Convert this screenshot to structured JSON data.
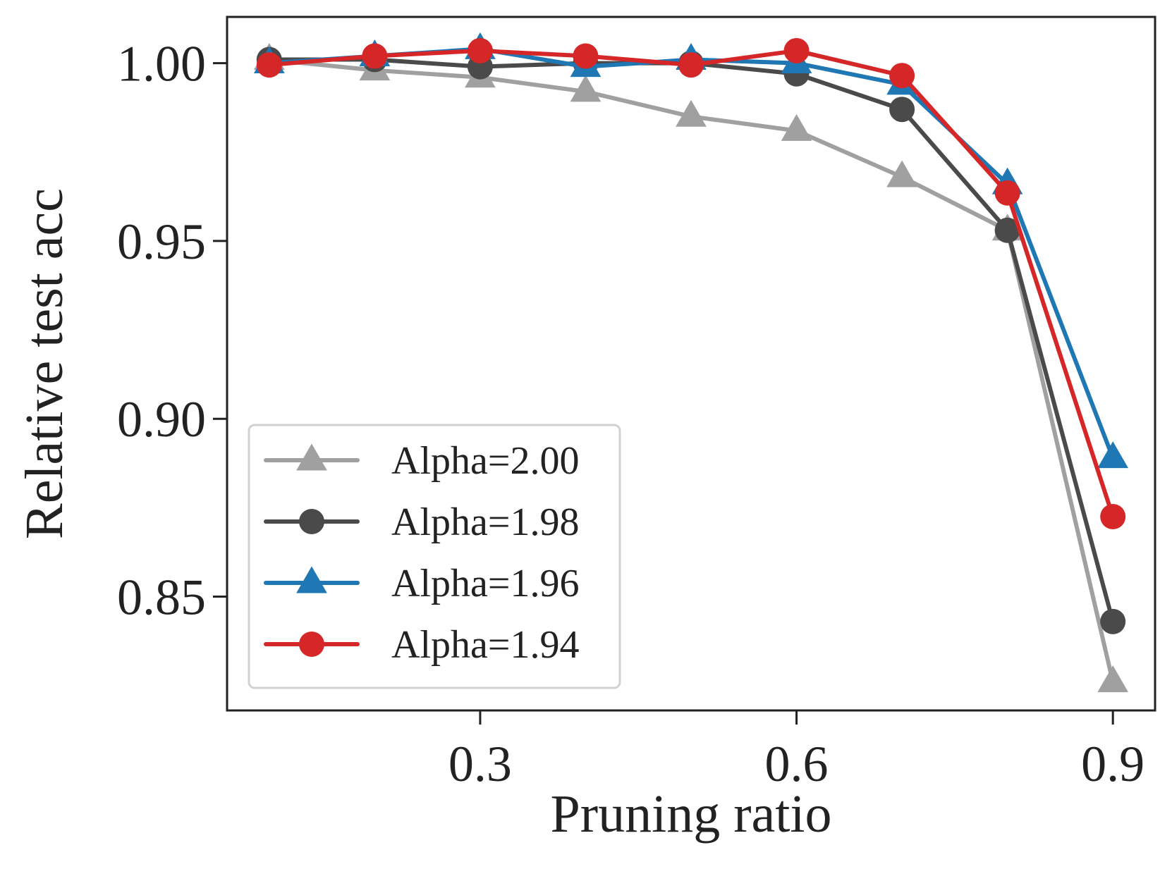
{
  "chart_data": {
    "type": "line",
    "title": "",
    "xlabel": "Pruning ratio",
    "ylabel": "Relative test acc",
    "x": [
      0.1,
      0.2,
      0.3,
      0.4,
      0.5,
      0.6,
      0.7,
      0.8,
      0.9
    ],
    "xlim": [
      0.06,
      0.94
    ],
    "ylim": [
      0.818,
      1.013
    ],
    "xticks": [
      0.3,
      0.6,
      0.9
    ],
    "xtick_labels": [
      "0.3",
      "0.6",
      "0.9"
    ],
    "yticks": [
      0.85,
      0.9,
      0.95,
      1.0
    ],
    "ytick_labels": [
      "0.85",
      "0.90",
      "0.95",
      "1.00"
    ],
    "grid": false,
    "legend_position": "lower-left",
    "series": [
      {
        "name": "Alpha=2.00",
        "color": "#a0a0a0",
        "marker": "triangle",
        "values": [
          1.001,
          0.998,
          0.996,
          0.992,
          0.985,
          0.981,
          0.968,
          0.953,
          0.826
        ]
      },
      {
        "name": "Alpha=1.98",
        "color": "#4a4a4a",
        "marker": "circle",
        "values": [
          1.001,
          1.001,
          0.999,
          1.0,
          1.0,
          0.997,
          0.987,
          0.953,
          0.843
        ]
      },
      {
        "name": "Alpha=1.96",
        "color": "#1f77b4",
        "marker": "triangle",
        "values": [
          1.0,
          1.002,
          1.004,
          0.999,
          1.001,
          1.0,
          0.994,
          0.966,
          0.889
        ]
      },
      {
        "name": "Alpha=1.94",
        "color": "#d62728",
        "marker": "circle",
        "values": [
          0.9995,
          1.002,
          1.0035,
          1.002,
          0.9995,
          1.0035,
          0.9965,
          0.9635,
          0.8725
        ]
      }
    ]
  }
}
